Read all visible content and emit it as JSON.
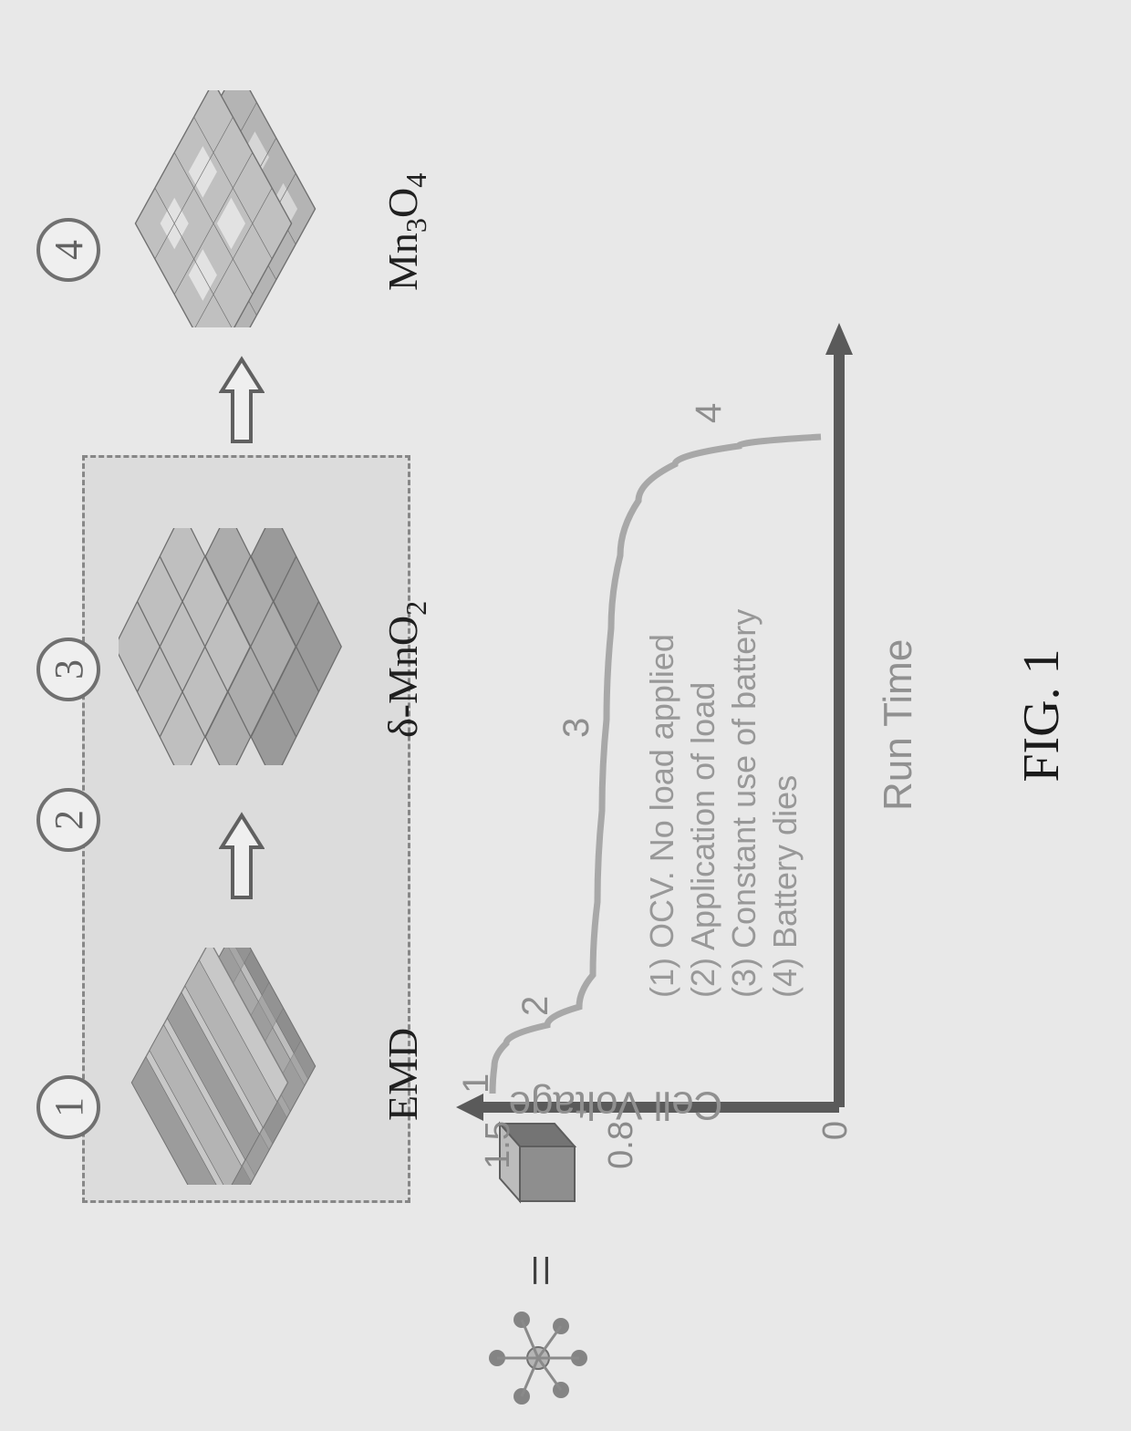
{
  "figure_caption": "FIG. 1",
  "top_row": {
    "badge1": "1",
    "badge2": "2",
    "badge3": "3",
    "badge4": "4",
    "label_emd": "EMD",
    "label_delta": "δ-MnO",
    "label_delta_sub": "2",
    "label_mn3o4_a": "Mn",
    "label_mn3o4_b": "3",
    "label_mn3o4_c": "O",
    "label_mn3o4_d": "4"
  },
  "legend": {
    "equals": "="
  },
  "chart": {
    "type": "line",
    "ylabel": "Cell Voltage",
    "xlabel": "Run Time",
    "yticks": [
      "1.5",
      "0.8",
      "0"
    ],
    "ytick_positions": [
      40,
      175,
      400
    ],
    "curve_markers": [
      "1",
      "2",
      "3",
      "4"
    ],
    "annotations": [
      "(1) OCV. No load applied",
      "(2) Application of load",
      "(3) Constant use of battery",
      "(4) Battery dies"
    ],
    "axis_color": "#5a5a5a",
    "curve_color": "#a8a8a8",
    "curve_points": [
      [
        110,
        40
      ],
      [
        140,
        42
      ],
      [
        165,
        55
      ],
      [
        185,
        100
      ],
      [
        205,
        135
      ],
      [
        240,
        150
      ],
      [
        320,
        155
      ],
      [
        420,
        160
      ],
      [
        520,
        165
      ],
      [
        620,
        170
      ],
      [
        700,
        180
      ],
      [
        760,
        200
      ],
      [
        800,
        240
      ],
      [
        820,
        310
      ],
      [
        830,
        400
      ]
    ]
  },
  "colors": {
    "background": "#e8e8e8",
    "cube_light": "#b8b8b8",
    "cube_mid": "#989898",
    "cube_dark": "#787878",
    "text_dark": "#1a1a1a",
    "text_gray": "#909090",
    "border": "#878787"
  }
}
